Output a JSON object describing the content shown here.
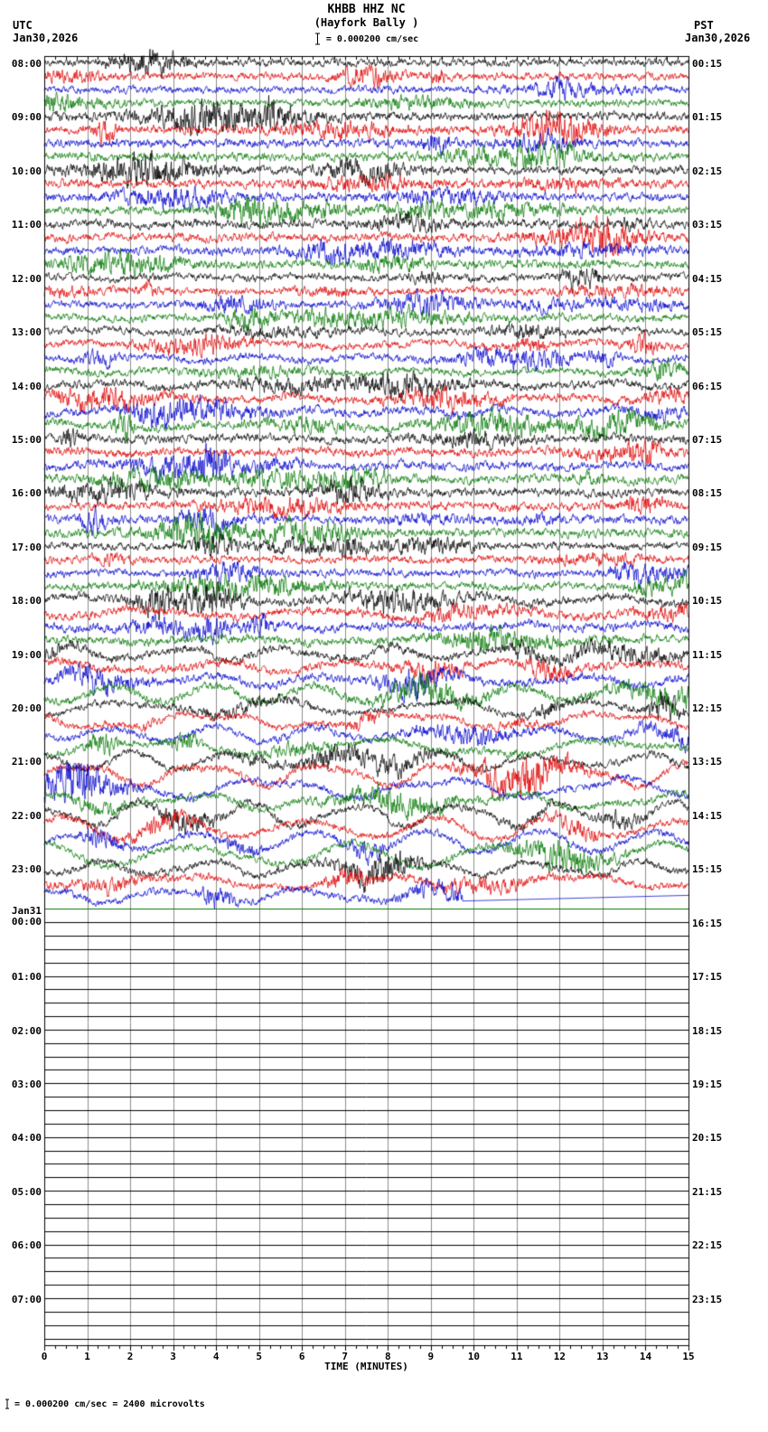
{
  "header": {
    "title": "KHBB HHZ NC",
    "subtitle": "(Hayfork Bally )",
    "left_tz": "UTC",
    "left_date": "Jan30,2026",
    "right_tz": "PST",
    "right_date": "Jan30,2026",
    "scale_label": "= 0.000200 cm/sec"
  },
  "footer": {
    "xlabel": "TIME (MINUTES)",
    "scale_note": "= 0.000200 cm/sec =    2400 microvolts"
  },
  "axis": {
    "x_ticks": [
      "0",
      "1",
      "2",
      "3",
      "4",
      "5",
      "6",
      "7",
      "8",
      "9",
      "10",
      "11",
      "12",
      "13",
      "14",
      "15"
    ]
  },
  "chart_data": {
    "type": "line",
    "subtype": "helicorder-seismogram",
    "station": "KHBB",
    "channel": "HHZ",
    "network": "NC",
    "site_name": "Hayfork Bally",
    "scale_cm_per_sec": "0.000200",
    "sensitivity_microvolts": "2400",
    "minutes_per_trace": 15,
    "traces_per_row": 4,
    "x_range": [
      0,
      15
    ],
    "grid_color": "#8c8c8c",
    "colors": [
      "#000000",
      "#dd0000",
      "#0000cc",
      "#007700"
    ],
    "rows": [
      {
        "utc": "08:00",
        "pst": "00:15",
        "active": true,
        "amp": 7,
        "swell": 0
      },
      {
        "utc": "09:00",
        "pst": "01:15",
        "active": true,
        "amp": 8,
        "swell": 0
      },
      {
        "utc": "10:00",
        "pst": "02:15",
        "active": true,
        "amp": 8,
        "swell": 0
      },
      {
        "utc": "11:00",
        "pst": "03:15",
        "active": true,
        "amp": 8,
        "swell": 1
      },
      {
        "utc": "12:00",
        "pst": "04:15",
        "active": true,
        "amp": 7,
        "swell": 1
      },
      {
        "utc": "13:00",
        "pst": "05:15",
        "active": true,
        "amp": 7,
        "swell": 2
      },
      {
        "utc": "14:00",
        "pst": "06:15",
        "active": true,
        "amp": 8,
        "swell": 3
      },
      {
        "utc": "15:00",
        "pst": "07:15",
        "active": true,
        "amp": 8,
        "swell": 2
      },
      {
        "utc": "16:00",
        "pst": "08:15",
        "active": true,
        "amp": 8,
        "swell": 1
      },
      {
        "utc": "17:00",
        "pst": "09:15",
        "active": true,
        "amp": 7,
        "swell": 1
      },
      {
        "utc": "18:00",
        "pst": "10:15",
        "active": true,
        "amp": 8,
        "swell": 3
      },
      {
        "utc": "19:00",
        "pst": "11:15",
        "active": true,
        "amp": 8,
        "swell": 6
      },
      {
        "utc": "20:00",
        "pst": "12:15",
        "active": true,
        "amp": 7,
        "swell": 8
      },
      {
        "utc": "21:00",
        "pst": "13:15",
        "active": true,
        "amp": 7,
        "swell": 9
      },
      {
        "utc": "22:00",
        "pst": "14:15",
        "active": true,
        "amp": 7,
        "swell": 9
      },
      {
        "utc": "23:00",
        "pst": "15:15",
        "active": true,
        "amp": 7,
        "swell": 6,
        "fractions": [
          1,
          1,
          0.65,
          0
        ]
      },
      {
        "utc": "00:00",
        "utc_date": "Jan31",
        "pst": "16:15",
        "active": false
      },
      {
        "utc": "01:00",
        "pst": "17:15",
        "active": false
      },
      {
        "utc": "02:00",
        "pst": "18:15",
        "active": false
      },
      {
        "utc": "03:00",
        "pst": "19:15",
        "active": false
      },
      {
        "utc": "04:00",
        "pst": "20:15",
        "active": false
      },
      {
        "utc": "05:00",
        "pst": "21:15",
        "active": false
      },
      {
        "utc": "06:00",
        "pst": "22:15",
        "active": false
      },
      {
        "utc": "07:00",
        "pst": "23:15",
        "active": false
      }
    ]
  }
}
